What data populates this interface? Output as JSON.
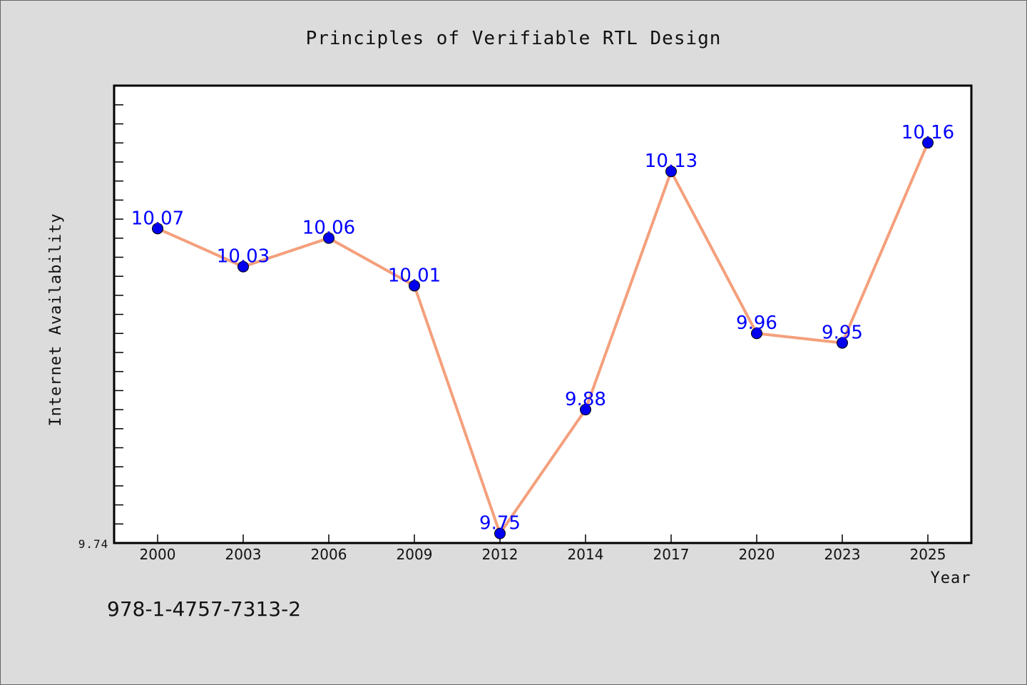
{
  "chart_data": {
    "type": "line",
    "title": "Principles of Verifiable RTL Design",
    "xlabel": "Year",
    "ylabel": "Internet Availability",
    "categories": [
      "2000",
      "2003",
      "2006",
      "2009",
      "2012",
      "2014",
      "2017",
      "2020",
      "2023",
      "2025"
    ],
    "values": [
      10.07,
      10.03,
      10.06,
      10.01,
      9.75,
      9.88,
      10.13,
      9.96,
      9.95,
      10.16
    ],
    "data_labels": [
      "10.07",
      "10.03",
      "10.06",
      "10.01",
      "9.75",
      "9.88",
      "10.13",
      "9.96",
      "9.95",
      "10.16"
    ],
    "ylim": [
      9.74,
      10.22
    ],
    "y_min_label": "9.74",
    "grid": false,
    "line_color": "#f4a07c",
    "marker_color": "#0000ee",
    "label_color": "#0000ff"
  },
  "footer": {
    "isbn": "978-1-4757-7313-2"
  }
}
